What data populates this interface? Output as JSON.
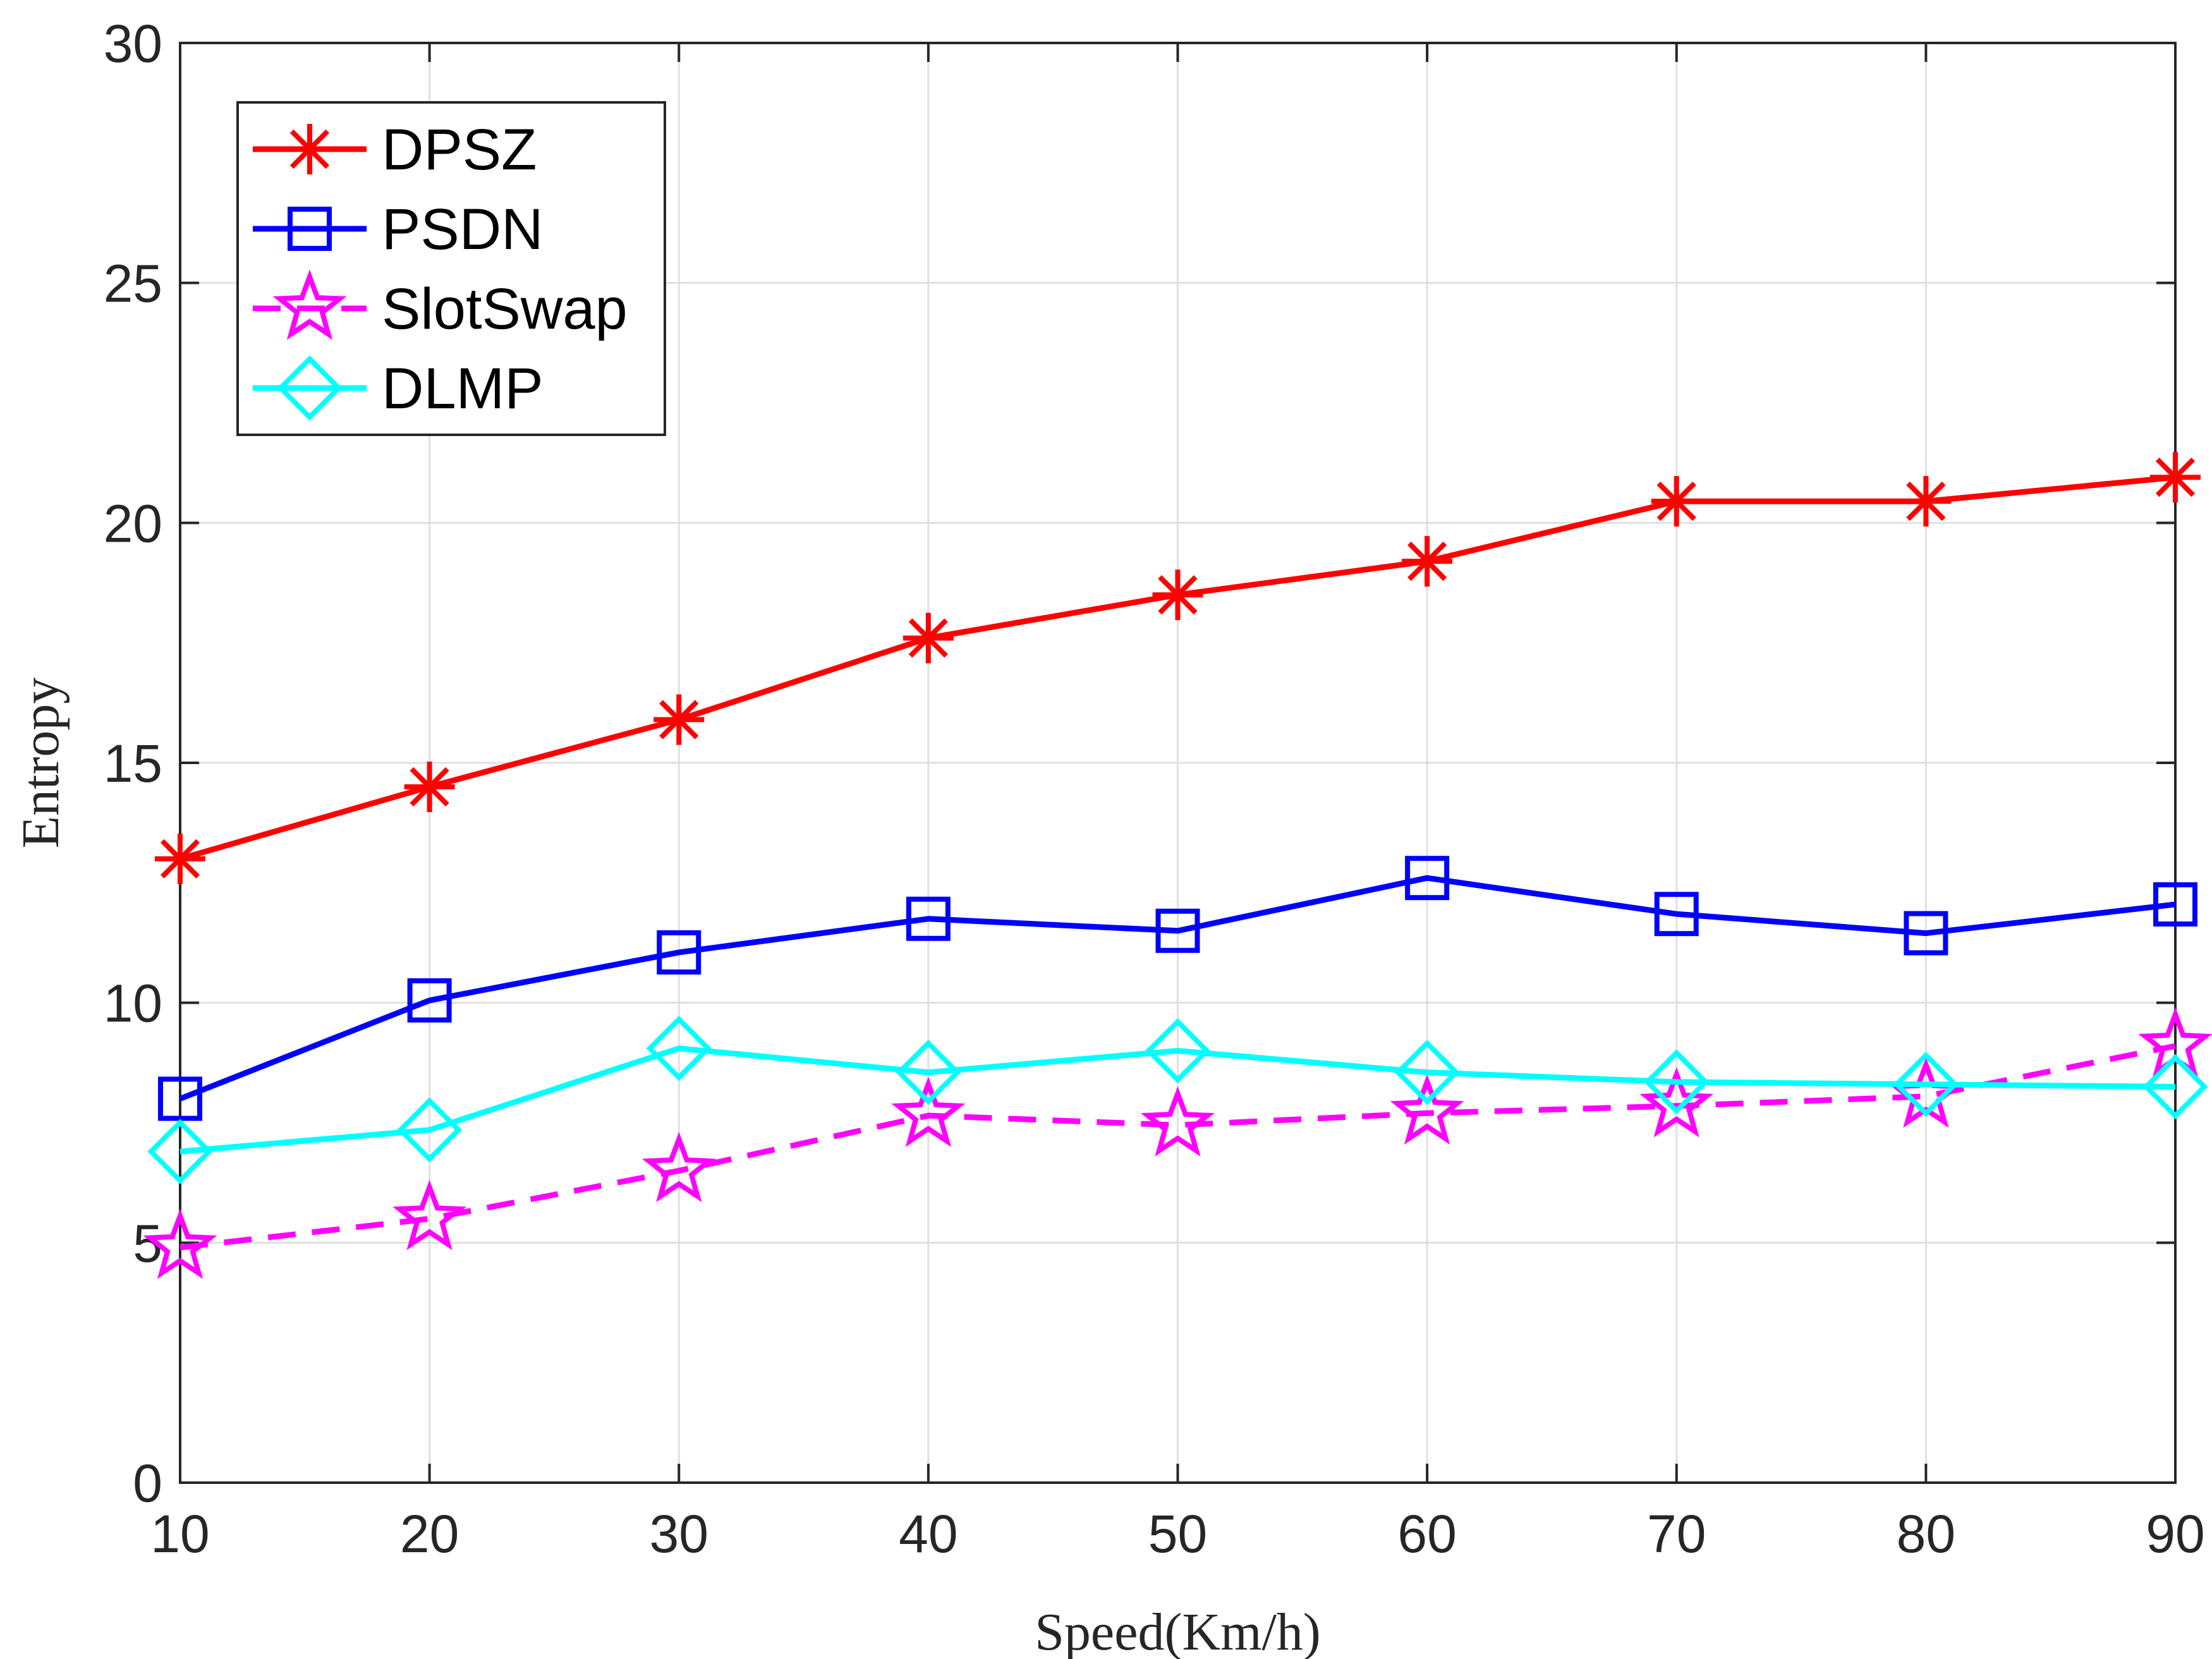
{
  "chart_data": {
    "type": "line",
    "title": "",
    "xlabel": "Speed(Km/h)",
    "ylabel": "Entropy",
    "xlim": [
      10,
      90
    ],
    "ylim": [
      0,
      30
    ],
    "x_ticks": [
      10,
      20,
      30,
      40,
      50,
      60,
      70,
      80,
      90
    ],
    "y_ticks": [
      0,
      5,
      10,
      15,
      20,
      25,
      30
    ],
    "grid": true,
    "legend_position": "top-left",
    "x": [
      10,
      20,
      30,
      40,
      50,
      60,
      70,
      80,
      90
    ],
    "series": [
      {
        "name": "DPSZ",
        "color": "#ff0000",
        "marker": "asterisk",
        "line_style": "solid",
        "values": [
          13.0,
          14.5,
          15.9,
          17.6,
          18.5,
          19.2,
          20.45,
          20.45,
          20.95
        ]
      },
      {
        "name": "PSDN",
        "color": "#0000ff",
        "marker": "square",
        "line_style": "solid",
        "values": [
          8.0,
          10.05,
          11.05,
          11.75,
          11.5,
          12.6,
          11.85,
          11.45,
          12.05
        ]
      },
      {
        "name": "SlotSwap",
        "color": "#ff00ff",
        "marker": "pentagram",
        "line_style": "dashed",
        "values": [
          4.9,
          5.5,
          6.5,
          7.65,
          7.45,
          7.7,
          7.85,
          8.05,
          9.1
        ]
      },
      {
        "name": "DLMP",
        "color": "#00ffff",
        "marker": "diamond",
        "line_style": "solid",
        "values": [
          6.9,
          7.35,
          9.05,
          8.55,
          9.0,
          8.55,
          8.35,
          8.3,
          8.25
        ]
      }
    ]
  }
}
